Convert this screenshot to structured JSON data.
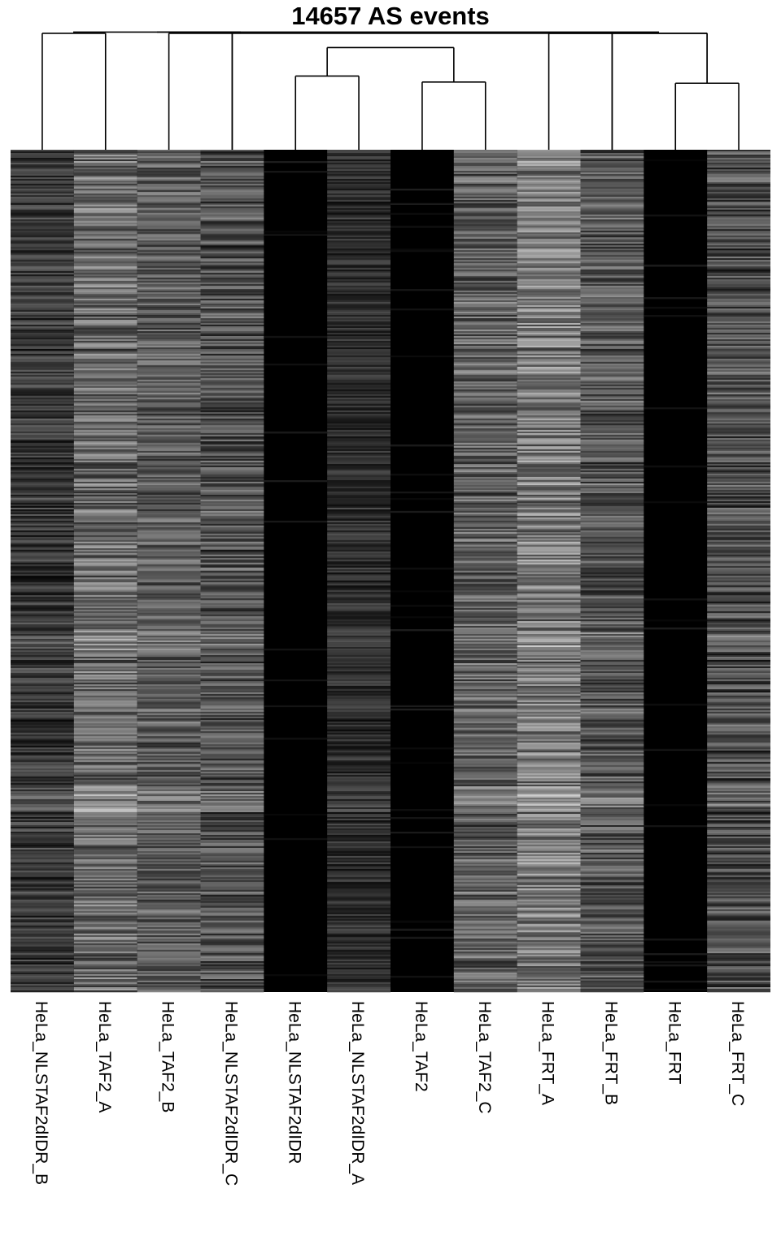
{
  "chart_data": {
    "type": "heatmap",
    "title": "14657 AS events",
    "xlabel": "",
    "ylabel": "",
    "n_rows": 14657,
    "colormap": [
      "#000000",
      "#ffffff"
    ],
    "columns": [
      {
        "name": "HeLa_NLSTAF2dIDR_B",
        "mean_level": 0.22,
        "variability": 0.16
      },
      {
        "name": "HeLa_TAF2_A",
        "mean_level": 0.42,
        "variability": 0.22
      },
      {
        "name": "HeLa_TAF2_B",
        "mean_level": 0.36,
        "variability": 0.18
      },
      {
        "name": "HeLa_NLSTAF2dIDR_C",
        "mean_level": 0.31,
        "variability": 0.2
      },
      {
        "name": "HeLa_NLSTAF2dIDR",
        "mean_level": 0.02,
        "variability": 0.03
      },
      {
        "name": "HeLa_NLSTAF2dIDR_A",
        "mean_level": 0.18,
        "variability": 0.12
      },
      {
        "name": "HeLa_TAF2",
        "mean_level": 0.01,
        "variability": 0.02
      },
      {
        "name": "HeLa_TAF2_C",
        "mean_level": 0.37,
        "variability": 0.2
      },
      {
        "name": "HeLa_FRT_A",
        "mean_level": 0.48,
        "variability": 0.22
      },
      {
        "name": "HeLa_FRT_B",
        "mean_level": 0.34,
        "variability": 0.2
      },
      {
        "name": "HeLa_FRT",
        "mean_level": 0.01,
        "variability": 0.02
      },
      {
        "name": "HeLa_FRT_C",
        "mean_level": 0.3,
        "variability": 0.2
      }
    ],
    "dendrogram": {
      "merges": [
        {
          "left": 4,
          "right": 5,
          "height": 0.62
        },
        {
          "left": 6,
          "right": 7,
          "height": 0.57
        },
        {
          "left": 10,
          "right": 11,
          "height": 0.56
        },
        {
          "left": "m0",
          "right": "m1",
          "height": 0.86
        },
        {
          "left": 0,
          "right": 1,
          "height": 0.98
        },
        {
          "left": 2,
          "right": 3,
          "height": 0.98
        },
        {
          "left": 8,
          "right": 9,
          "height": 0.98
        },
        {
          "left": "m2",
          "right": 3,
          "height": 0.98
        },
        {
          "left": 9,
          "right": "m2",
          "height": 0.98
        }
      ]
    }
  }
}
